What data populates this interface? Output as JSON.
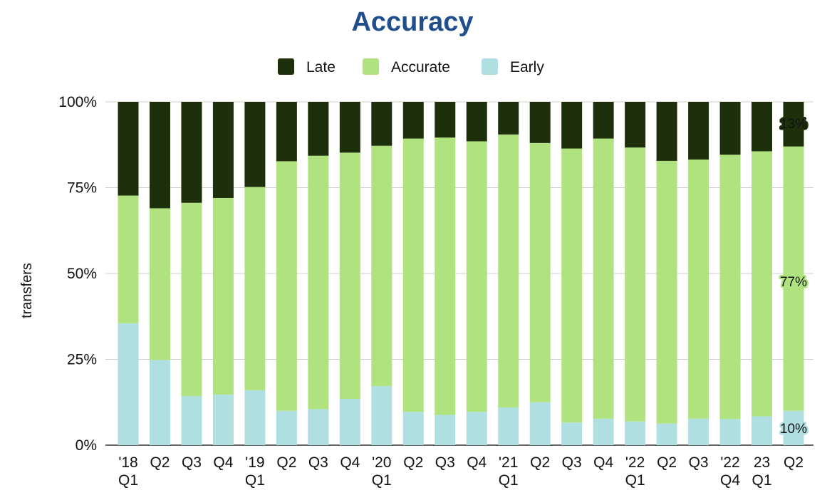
{
  "chart_data": {
    "type": "bar",
    "stacked": true,
    "normalized": true,
    "title": "Accuracy",
    "xlabel": "",
    "ylabel": "transfers",
    "ylim": [
      0,
      100
    ],
    "yticks": [
      "0%",
      "25%",
      "50%",
      "75%",
      "100%"
    ],
    "legend_position": "top",
    "grid": true,
    "categories": [
      [
        "'18",
        "Q1"
      ],
      [
        "Q2"
      ],
      [
        "Q3"
      ],
      [
        "Q4"
      ],
      [
        "'19",
        "Q1"
      ],
      [
        "Q2"
      ],
      [
        "Q3"
      ],
      [
        "Q4"
      ],
      [
        "'20",
        "Q1"
      ],
      [
        "Q2"
      ],
      [
        "Q3"
      ],
      [
        "Q4"
      ],
      [
        "'21",
        "Q1"
      ],
      [
        "Q2"
      ],
      [
        "Q3"
      ],
      [
        "Q4"
      ],
      [
        "'22",
        "Q1"
      ],
      [
        "Q2"
      ],
      [
        "Q3"
      ],
      [
        "'22",
        "Q4"
      ],
      [
        "23",
        "Q1"
      ],
      [
        "Q2"
      ]
    ],
    "series": [
      {
        "name": "Early",
        "color": "#b0dfe1",
        "values": [
          35.5,
          24.8,
          14.3,
          14.7,
          16.0,
          10.0,
          10.5,
          13.5,
          17.2,
          9.7,
          8.8,
          9.7,
          11.0,
          12.5,
          6.6,
          7.7,
          6.9,
          6.3,
          7.7,
          7.6,
          8.4,
          10.0
        ]
      },
      {
        "name": "Accurate",
        "color": "#b0e37f",
        "values": [
          37.2,
          44.2,
          56.3,
          57.3,
          59.2,
          72.7,
          73.8,
          71.7,
          70.0,
          79.6,
          80.8,
          78.8,
          79.5,
          75.5,
          79.8,
          81.6,
          79.8,
          76.5,
          75.5,
          77.0,
          77.2,
          77.0
        ]
      },
      {
        "name": "Late",
        "color": "#1e300b",
        "values": [
          27.3,
          31.0,
          29.4,
          28.0,
          24.8,
          17.3,
          15.7,
          14.8,
          12.8,
          10.7,
          10.4,
          11.5,
          9.5,
          12.0,
          13.6,
          10.7,
          13.3,
          17.2,
          16.8,
          15.4,
          14.4,
          13.0
        ]
      }
    ],
    "legend": [
      {
        "name": "Late",
        "color": "#1e300b"
      },
      {
        "name": "Accurate",
        "color": "#b0e37f"
      },
      {
        "name": "Early",
        "color": "#b0dfe1"
      }
    ],
    "data_labels": [
      {
        "bar_index": 21,
        "series": "Late",
        "text": "13%"
      },
      {
        "bar_index": 21,
        "series": "Accurate",
        "text": "77%"
      },
      {
        "bar_index": 21,
        "series": "Early",
        "text": "10%"
      }
    ]
  }
}
